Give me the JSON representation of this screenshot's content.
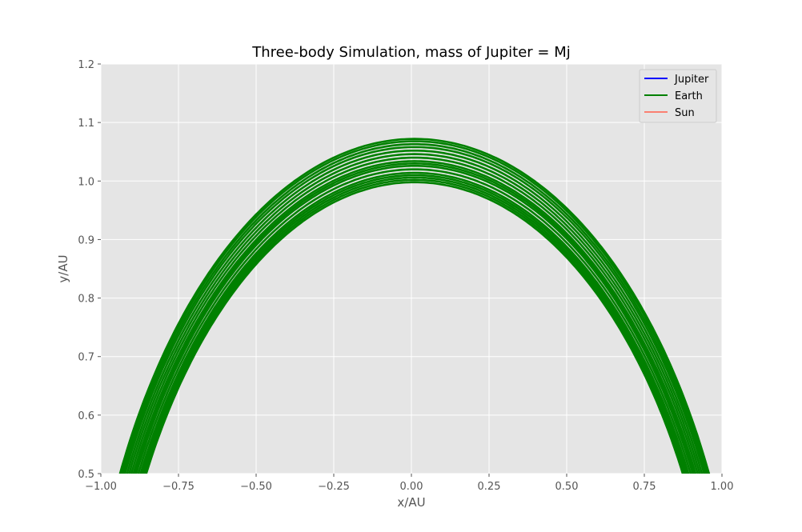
{
  "chart_data": {
    "type": "line",
    "title": "Three-body Simulation, mass of Jupiter = Mj",
    "xlabel": "x/AU",
    "ylabel": "y/AU",
    "xlim": [
      -1.0,
      1.0
    ],
    "ylim": [
      0.5,
      1.2
    ],
    "xticks": [
      -1.0,
      -0.75,
      -0.5,
      -0.25,
      0.0,
      0.25,
      0.5,
      0.75,
      1.0
    ],
    "xtick_labels": [
      "−1.00",
      "−0.75",
      "−0.50",
      "−0.25",
      "0.00",
      "0.25",
      "0.50",
      "0.75",
      "1.00"
    ],
    "yticks": [
      0.5,
      0.6,
      0.7,
      0.8,
      0.9,
      1.0,
      1.1,
      1.2
    ],
    "ytick_labels": [
      "0.5",
      "0.6",
      "0.7",
      "0.8",
      "0.9",
      "1.0",
      "1.1",
      "1.2"
    ],
    "grid": true,
    "legend_position": "top-right",
    "background": "#E5E5E5",
    "series": [
      {
        "name": "Jupiter",
        "color": "#0000FF",
        "orbit_radii": []
      },
      {
        "name": "Earth",
        "color": "#008000",
        "center_x": 0.01,
        "orbit_radii": [
          0.998,
          1.002,
          1.006,
          1.01,
          1.014,
          1.02,
          1.026,
          1.03,
          1.034,
          1.04,
          1.046,
          1.052,
          1.058,
          1.063,
          1.068,
          1.072
        ]
      },
      {
        "name": "Sun",
        "color": "#FA8072",
        "orbit_radii": []
      }
    ]
  }
}
